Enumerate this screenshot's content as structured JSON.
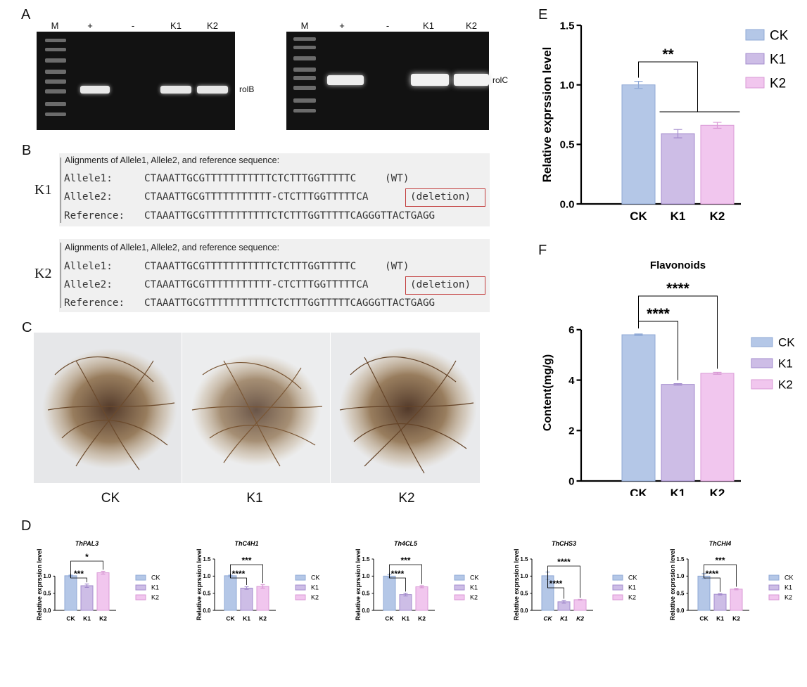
{
  "panels": {
    "A": "A",
    "B": "B",
    "C": "C",
    "D": "D",
    "E": "E",
    "F": "F"
  },
  "panel_a": {
    "gels": [
      {
        "lanes": [
          "M",
          "+",
          "-",
          "K1",
          "K2"
        ],
        "gene": "rolB"
      },
      {
        "lanes": [
          "M",
          "+",
          "-",
          "K1",
          "K2"
        ],
        "gene": "rolC"
      }
    ]
  },
  "panel_b": {
    "blocks": [
      {
        "sample": "K1",
        "header": "Alignments of Allele1, Allele2, and reference sequence:",
        "rows": [
          {
            "name": "Allele1:",
            "seq": "CTAAATTGCGTTTTTTTTTTTCTCTTTGGTTTTTC",
            "note": "(WT)"
          },
          {
            "name": "Allele2:",
            "seq": "CTAAATTGCGTTTTTTTTTTT-CTCTTTGGTTTTTCA",
            "note": "(deletion)"
          },
          {
            "name": "Reference:",
            "seq": "CTAAATTGCGTTTTTTTTTTTCTCTTTGGTTTTTCAGGGTTACTGAGG",
            "note": ""
          }
        ]
      },
      {
        "sample": "K2",
        "header": "Alignments of Allele1, Allele2, and reference sequence:",
        "rows": [
          {
            "name": "Allele1:",
            "seq": "CTAAATTGCGTTTTTTTTTTTCTCTTTGGTTTTTC",
            "note": "(WT)"
          },
          {
            "name": "Allele2:",
            "seq": "CTAAATTGCGTTTTTTTTTTT-CTCTTTGGTTTTTCA",
            "note": "(deletion)"
          },
          {
            "name": "Reference:",
            "seq": "CTAAATTGCGTTTTTTTTTTTCTCTTTGGTTTTTCAGGGTTACTGAGG",
            "note": ""
          }
        ]
      }
    ]
  },
  "panel_c": {
    "labels": [
      "CK",
      "K1",
      "K2"
    ]
  },
  "colors": {
    "CK": "#b4c7e7",
    "K1": "#cdbde6",
    "K2": "#f1c6ee",
    "CK_edge": "#8fa9d6",
    "K1_edge": "#a48ccd",
    "K2_edge": "#d99ad5"
  },
  "chart_data": [
    {
      "id": "E",
      "type": "bar",
      "title": "",
      "categories": [
        "CK",
        "K1",
        "K2"
      ],
      "values": [
        1.0,
        0.59,
        0.66
      ],
      "errors": [
        0.03,
        0.035,
        0.025
      ],
      "ylabel": "Relative exprssion level",
      "xlabel": "",
      "ylim": [
        0,
        1.5
      ],
      "yticks": [
        "0.0",
        "0.5",
        "1.0",
        "1.5"
      ],
      "tick_values": [
        0,
        0.5,
        1.0,
        1.5
      ],
      "legend": [
        "CK",
        "K1",
        "K2"
      ],
      "legend_position": "right",
      "grid": false,
      "annotations": [
        {
          "text": "**",
          "from": "CK",
          "to": "K1, K2"
        }
      ]
    },
    {
      "id": "F",
      "type": "bar",
      "title": "Flavonoids",
      "categories": [
        "CK",
        "K1",
        "K2"
      ],
      "values": [
        5.8,
        3.83,
        4.27
      ],
      "errors": [
        0.03,
        0.03,
        0.04
      ],
      "ylabel": "Content(mg/g)",
      "xlabel": "",
      "ylim": [
        0,
        7
      ],
      "yticks": [
        "0",
        "2",
        "4",
        "6"
      ],
      "tick_values": [
        0,
        2,
        4,
        6
      ],
      "legend": [
        "CK",
        "K1",
        "K2"
      ],
      "legend_position": "right",
      "grid": false,
      "annotations": [
        {
          "text": "****",
          "from": "CK",
          "to": "K1"
        },
        {
          "text": "****",
          "from": "CK",
          "to": "K2"
        }
      ]
    },
    {
      "id": "D1",
      "type": "bar",
      "title": "ThPAL3",
      "categories": [
        "CK",
        "K1",
        "K2"
      ],
      "values": [
        1.01,
        0.72,
        1.1
      ],
      "errors": [
        0.02,
        0.05,
        0.04
      ],
      "ylabel": "Relative exprssion level",
      "ylim": [
        0,
        1.5
      ],
      "yticks": [
        "0.0",
        "0.5",
        "1.0"
      ],
      "tick_values": [
        0,
        0.5,
        1.0
      ],
      "legend": [
        "CK",
        "K1",
        "K2"
      ],
      "legend_position": "right",
      "annotations": [
        {
          "text": "***",
          "from": "CK",
          "to": "K1"
        },
        {
          "text": "*",
          "from": "CK",
          "to": "K2"
        }
      ]
    },
    {
      "id": "D2",
      "type": "bar",
      "title": "ThC4H1",
      "categories": [
        "CK",
        "K1",
        "K2"
      ],
      "values": [
        1.01,
        0.65,
        0.7
      ],
      "errors": [
        0.02,
        0.04,
        0.05
      ],
      "ylabel": "Relative exprssion level",
      "ylim": [
        0,
        1.5
      ],
      "yticks": [
        "0.0",
        "0.5",
        "1.0",
        "1.5"
      ],
      "tick_values": [
        0,
        0.5,
        1.0,
        1.5
      ],
      "legend": [
        "CK",
        "K1",
        "K2"
      ],
      "legend_position": "right",
      "annotations": [
        {
          "text": "****",
          "from": "CK",
          "to": "K1"
        },
        {
          "text": "***",
          "from": "CK",
          "to": "K2"
        }
      ]
    },
    {
      "id": "D3",
      "type": "bar",
      "title": "Th4CL5",
      "categories": [
        "CK",
        "K1",
        "K2"
      ],
      "values": [
        1.0,
        0.46,
        0.69
      ],
      "errors": [
        0.05,
        0.04,
        0.03
      ],
      "ylabel": "Relative exprssion level",
      "ylim": [
        0,
        1.5
      ],
      "yticks": [
        "0.0",
        "0.5",
        "1.0",
        "1.5"
      ],
      "tick_values": [
        0,
        0.5,
        1.0,
        1.5
      ],
      "legend": [
        "CK",
        "K1",
        "K2"
      ],
      "legend_position": "right",
      "annotations": [
        {
          "text": "****",
          "from": "CK",
          "to": "K1"
        },
        {
          "text": "***",
          "from": "CK",
          "to": "K2"
        }
      ]
    },
    {
      "id": "D4",
      "type": "bar",
      "title": "ThCHS3",
      "categories": [
        "CK",
        "K1",
        "K2"
      ],
      "values": [
        1.01,
        0.25,
        0.31
      ],
      "errors": [
        0.11,
        0.04,
        0.01
      ],
      "ylabel": "Relative exprssion level",
      "ylim": [
        0,
        1.5
      ],
      "yticks": [
        "0.0",
        "0.5",
        "1.0",
        "1.5"
      ],
      "tick_values": [
        0,
        0.5,
        1.0,
        1.5
      ],
      "legend": [
        "CK",
        "K1",
        "K2"
      ],
      "legend_position": "right",
      "annotations": [
        {
          "text": "****",
          "from": "CK",
          "to": "K1"
        },
        {
          "text": "****",
          "from": "CK",
          "to": "K2"
        }
      ]
    },
    {
      "id": "D5",
      "type": "bar",
      "title": "ThCHI4",
      "categories": [
        "CK",
        "K1",
        "K2"
      ],
      "values": [
        1.0,
        0.47,
        0.62
      ],
      "errors": [
        0.07,
        0.02,
        0.02
      ],
      "ylabel": "Relative exprssion level",
      "ylim": [
        0,
        1.5
      ],
      "yticks": [
        "0.0",
        "0.5",
        "1.0",
        "1.5"
      ],
      "tick_values": [
        0,
        0.5,
        1.0,
        1.5
      ],
      "legend": [
        "CK",
        "K1",
        "K2"
      ],
      "legend_position": "right",
      "annotations": [
        {
          "text": "****",
          "from": "CK",
          "to": "K1"
        },
        {
          "text": "***",
          "from": "CK",
          "to": "K2"
        }
      ]
    }
  ]
}
